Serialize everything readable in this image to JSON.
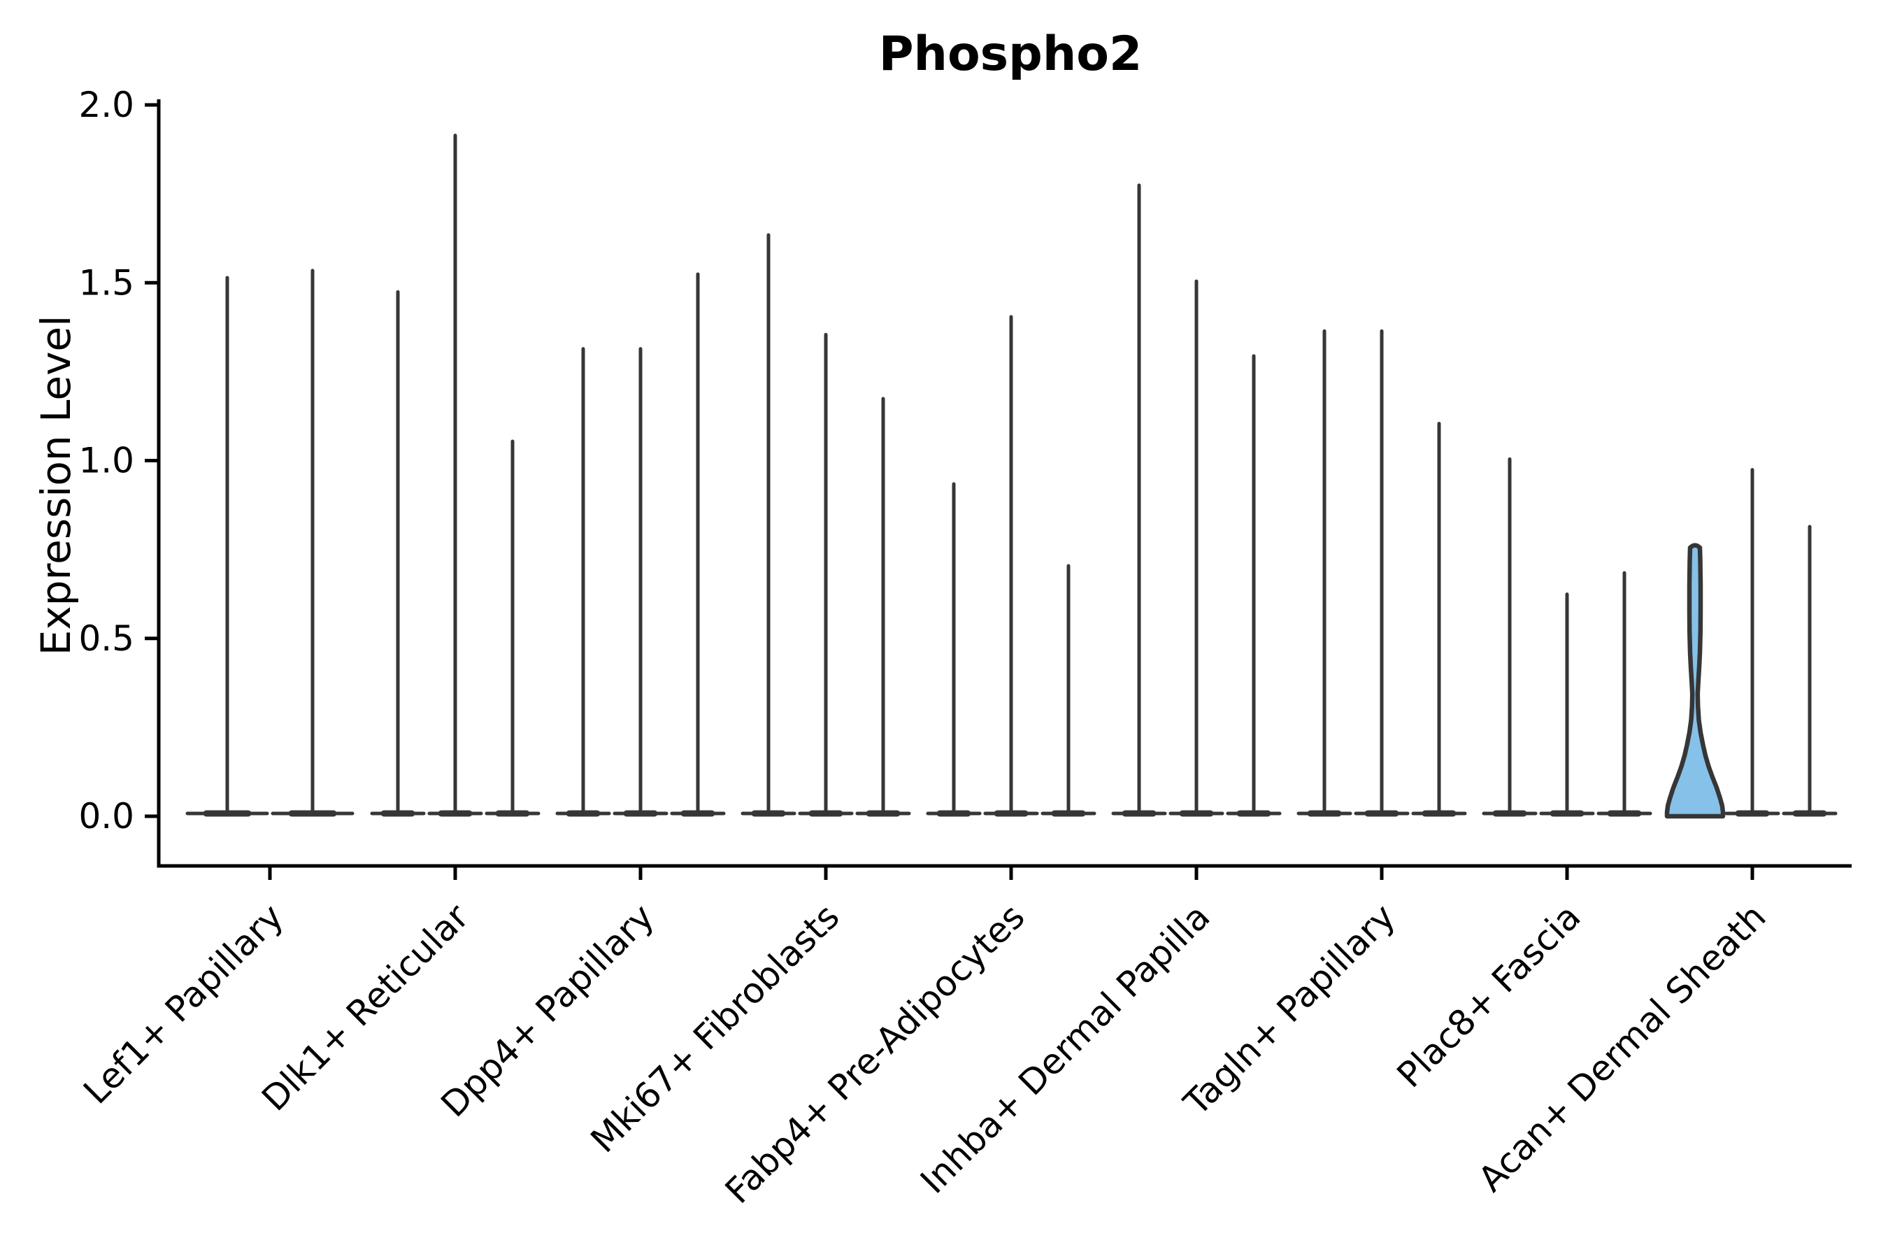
{
  "chart_data": {
    "type": "violin",
    "title": "Phospho2",
    "xlabel": "",
    "ylabel": "Expression Level",
    "ylim": [
      0.0,
      2.0
    ],
    "yticks": [
      "0.0",
      "0.5",
      "1.0",
      "1.5",
      "2.0"
    ],
    "grid": false,
    "legend": null,
    "categories": [
      "Lef1+ Papillary",
      "Dlk1+ Reticular",
      "Dpp4+ Papillary",
      "Mki67+ Fibroblasts",
      "Fabp4+ Pre-Adipocytes",
      "Inhba+ Dermal Papilla",
      "Tagln+ Papillary",
      "Plac8+ Fascia",
      "Acan+ Dermal Sheath"
    ],
    "groups": [
      {
        "category": "Lef1+ Papillary",
        "violin_max_values": [
          1.52,
          1.54
        ]
      },
      {
        "category": "Dlk1+ Reticular",
        "violin_max_values": [
          1.48,
          1.92,
          1.06
        ]
      },
      {
        "category": "Dpp4+ Papillary",
        "violin_max_values": [
          1.32,
          1.32,
          1.53
        ]
      },
      {
        "category": "Mki67+ Fibroblasts",
        "violin_max_values": [
          1.64,
          1.36,
          1.18
        ]
      },
      {
        "category": "Fabp4+ Pre-Adipocytes",
        "violin_max_values": [
          0.94,
          1.41,
          0.71
        ]
      },
      {
        "category": "Inhba+ Dermal Papilla",
        "violin_max_values": [
          1.78,
          1.51,
          1.3
        ]
      },
      {
        "category": "Tagln+ Papillary",
        "violin_max_values": [
          1.37,
          1.37,
          1.11
        ]
      },
      {
        "category": "Plac8+ Fascia",
        "violin_max_values": [
          1.01,
          0.63,
          0.69
        ]
      },
      {
        "category": "Acan+ Dermal Sheath",
        "violin_max_values": [
          0.76,
          0.98,
          0.82
        ]
      }
    ],
    "highlight": {
      "group": "Acan+ Dermal Sheath",
      "violin_index": 0,
      "max_value": 0.76,
      "fill_color": "#85c1e9",
      "profile": [
        [
          0.755,
          7
        ],
        [
          0.72,
          7.5
        ],
        [
          0.65,
          8
        ],
        [
          0.58,
          8
        ],
        [
          0.52,
          7.8
        ],
        [
          0.46,
          7
        ],
        [
          0.42,
          6
        ],
        [
          0.38,
          4.8
        ],
        [
          0.345,
          3.8
        ],
        [
          0.31,
          4.2
        ],
        [
          0.27,
          5.5
        ],
        [
          0.235,
          8
        ],
        [
          0.2,
          11.5
        ],
        [
          0.17,
          15
        ],
        [
          0.14,
          19.5
        ],
        [
          0.11,
          25
        ],
        [
          0.08,
          31
        ],
        [
          0.05,
          36
        ],
        [
          0.03,
          38.8
        ],
        [
          0.012,
          40
        ],
        [
          0.0,
          40
        ]
      ]
    },
    "colors": {
      "axis": "#000000",
      "violin_line": "#363636",
      "highlight_fill": "#85c1e9",
      "background": "#ffffff"
    }
  }
}
